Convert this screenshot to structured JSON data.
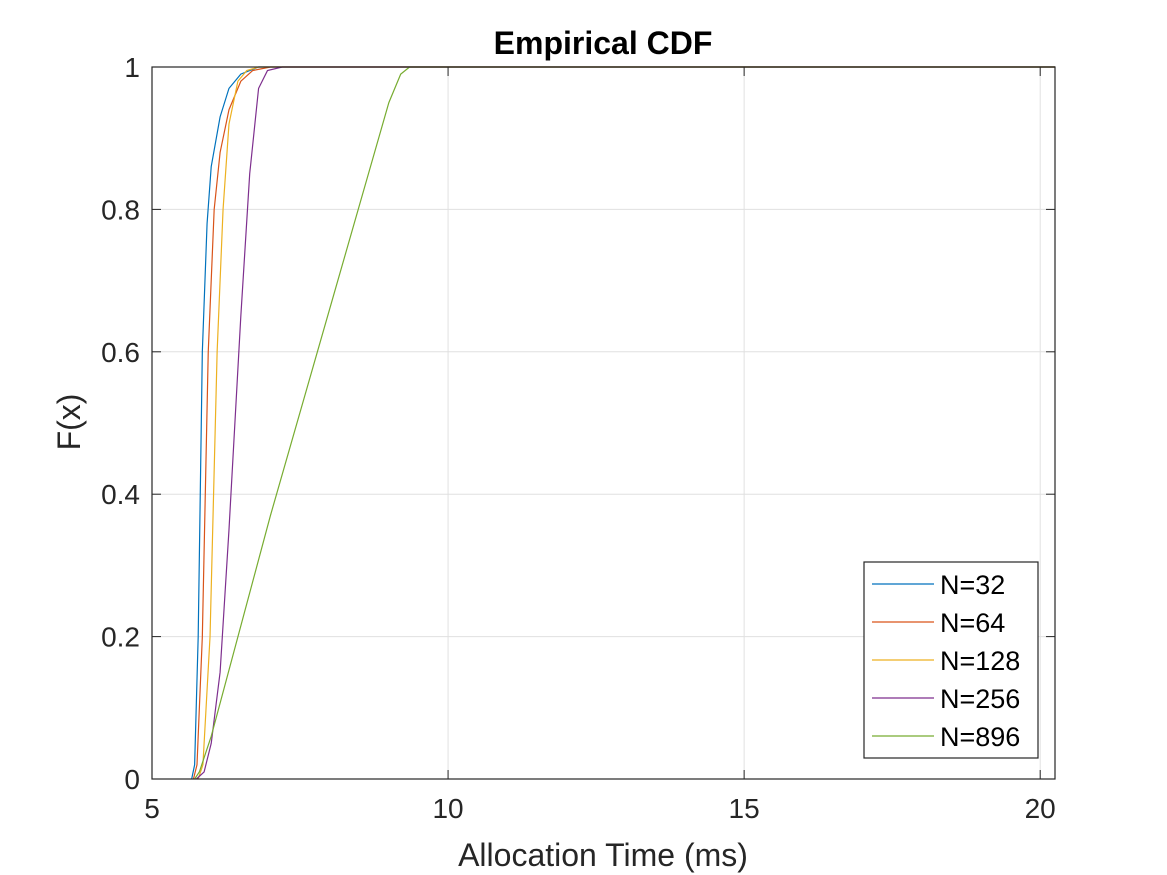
{
  "chart_data": {
    "type": "line",
    "title": "Empirical CDF",
    "xlabel": "Allocation Time (ms)",
    "ylabel": "F(x)",
    "xlim": [
      5,
      20.25
    ],
    "ylim": [
      0,
      1
    ],
    "xticks": [
      "5",
      "10",
      "15",
      "20"
    ],
    "yticks": [
      "0",
      "0.2",
      "0.4",
      "0.6",
      "0.8",
      "1"
    ],
    "grid": true,
    "legend_position": "bottom-right",
    "series": [
      {
        "name": "N=32",
        "color": "#0072BD",
        "points": [
          [
            5.67,
            0
          ],
          [
            5.72,
            0.02
          ],
          [
            5.78,
            0.2
          ],
          [
            5.85,
            0.6
          ],
          [
            5.93,
            0.78
          ],
          [
            6.0,
            0.86
          ],
          [
            6.15,
            0.93
          ],
          [
            6.3,
            0.97
          ],
          [
            6.5,
            0.99
          ],
          [
            6.8,
            1.0
          ],
          [
            20.25,
            1.0
          ]
        ]
      },
      {
        "name": "N=64",
        "color": "#D95319",
        "points": [
          [
            5.7,
            0
          ],
          [
            5.76,
            0.02
          ],
          [
            5.85,
            0.2
          ],
          [
            5.95,
            0.6
          ],
          [
            6.05,
            0.8
          ],
          [
            6.15,
            0.88
          ],
          [
            6.3,
            0.94
          ],
          [
            6.5,
            0.98
          ],
          [
            6.7,
            0.995
          ],
          [
            7.0,
            1.0
          ],
          [
            20.25,
            1.0
          ]
        ]
      },
      {
        "name": "N=128",
        "color": "#EDB120",
        "points": [
          [
            5.78,
            0
          ],
          [
            5.86,
            0.02
          ],
          [
            5.98,
            0.2
          ],
          [
            6.1,
            0.6
          ],
          [
            6.2,
            0.8
          ],
          [
            6.3,
            0.92
          ],
          [
            6.45,
            0.98
          ],
          [
            6.6,
            0.995
          ],
          [
            6.8,
            1.0
          ],
          [
            20.25,
            1.0
          ]
        ]
      },
      {
        "name": "N=256",
        "color": "#7E2F8E",
        "points": [
          [
            5.75,
            0
          ],
          [
            5.88,
            0.01
          ],
          [
            6.0,
            0.05
          ],
          [
            6.15,
            0.15
          ],
          [
            6.3,
            0.35
          ],
          [
            6.5,
            0.65
          ],
          [
            6.65,
            0.85
          ],
          [
            6.8,
            0.97
          ],
          [
            6.95,
            0.995
          ],
          [
            7.2,
            1.0
          ],
          [
            20.25,
            1.0
          ]
        ]
      },
      {
        "name": "N=896",
        "color": "#77AC30",
        "points": [
          [
            5.72,
            0
          ],
          [
            5.8,
            0.01
          ],
          [
            6.0,
            0.06
          ],
          [
            7.0,
            0.37
          ],
          [
            8.0,
            0.66
          ],
          [
            9.0,
            0.95
          ],
          [
            9.2,
            0.99
          ],
          [
            9.35,
            1.0
          ],
          [
            20.25,
            1.0
          ]
        ]
      }
    ]
  }
}
